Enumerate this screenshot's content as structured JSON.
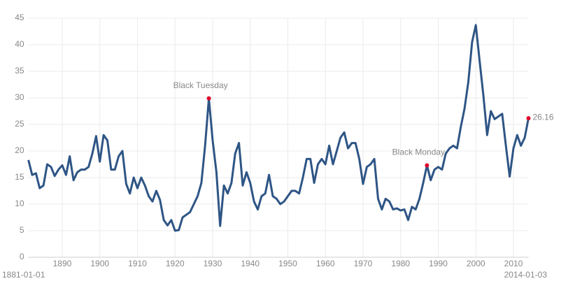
{
  "chart_data": {
    "type": "line",
    "start_label": "1881-01-01",
    "end_label": "2014-01-03",
    "x": [
      1881,
      1882,
      1883,
      1884,
      1885,
      1886,
      1887,
      1888,
      1889,
      1890,
      1891,
      1892,
      1893,
      1894,
      1895,
      1896,
      1897,
      1898,
      1899,
      1900,
      1901,
      1902,
      1903,
      1904,
      1905,
      1906,
      1907,
      1908,
      1909,
      1910,
      1911,
      1912,
      1913,
      1914,
      1915,
      1916,
      1917,
      1918,
      1919,
      1920,
      1921,
      1922,
      1923,
      1924,
      1925,
      1926,
      1927,
      1928,
      1929,
      1930,
      1931,
      1932,
      1933,
      1934,
      1935,
      1936,
      1937,
      1938,
      1939,
      1940,
      1941,
      1942,
      1943,
      1944,
      1945,
      1946,
      1947,
      1948,
      1949,
      1950,
      1951,
      1952,
      1953,
      1954,
      1955,
      1956,
      1957,
      1958,
      1959,
      1960,
      1961,
      1962,
      1963,
      1964,
      1965,
      1966,
      1967,
      1968,
      1969,
      1970,
      1971,
      1972,
      1973,
      1974,
      1975,
      1976,
      1977,
      1978,
      1979,
      1980,
      1981,
      1982,
      1983,
      1984,
      1985,
      1986,
      1987,
      1988,
      1989,
      1990,
      1991,
      1992,
      1993,
      1994,
      1995,
      1996,
      1997,
      1998,
      1999,
      2000,
      2001,
      2002,
      2003,
      2004,
      2005,
      2006,
      2007,
      2008,
      2009,
      2010,
      2011,
      2012,
      2013,
      2014
    ],
    "series": [
      {
        "color": "#2e5585",
        "values": [
          18.3,
          15.5,
          15.8,
          13.0,
          13.5,
          17.5,
          17.0,
          15.3,
          16.5,
          17.3,
          15.5,
          19.0,
          14.5,
          16.0,
          16.5,
          16.5,
          17.0,
          19.5,
          22.8,
          18.0,
          23.0,
          22.0,
          16.5,
          16.5,
          19.0,
          20.0,
          13.8,
          12.0,
          15.0,
          13.0,
          15.0,
          13.5,
          11.5,
          10.5,
          12.5,
          10.8,
          7.0,
          6.0,
          7.0,
          5.0,
          5.1,
          7.5,
          8.0,
          8.5,
          10.0,
          11.5,
          14.0,
          21.0,
          29.9,
          22.0,
          16.0,
          5.9,
          13.5,
          12.0,
          14.0,
          19.5,
          21.5,
          13.5,
          16.0,
          14.0,
          10.5,
          9.0,
          11.5,
          12.0,
          15.5,
          11.5,
          11.0,
          10.0,
          10.5,
          11.5,
          12.5,
          12.5,
          12.0,
          15.0,
          18.5,
          18.5,
          14.0,
          17.5,
          18.5,
          17.5,
          21.0,
          17.5,
          20.0,
          22.5,
          23.5,
          20.5,
          21.5,
          21.5,
          18.5,
          13.8,
          17.0,
          17.5,
          18.5,
          11.0,
          9.0,
          11.0,
          10.5,
          9.0,
          9.2,
          8.8,
          9.0,
          7.0,
          9.5,
          9.0,
          11.0,
          14.0,
          17.3,
          14.5,
          16.5,
          17.0,
          16.5,
          19.5,
          20.5,
          21.0,
          20.5,
          24.5,
          28.0,
          33.0,
          40.5,
          43.7,
          37.0,
          30.5,
          23.0,
          27.5,
          26.0,
          26.5,
          27.0,
          21.0,
          15.2,
          20.5,
          23.0,
          21.0,
          22.5,
          26.16
        ]
      }
    ],
    "annotations": [
      {
        "x": 1929,
        "y": 29.9,
        "label": "Black Tuesday"
      },
      {
        "x": 1987,
        "y": 17.3,
        "label": "Black Monday"
      },
      {
        "x": 2014,
        "y": 26.16,
        "label": "26.16"
      }
    ],
    "annotation_color": "#e0002a",
    "xlim": [
      1881,
      2014
    ],
    "xticks": [
      1890,
      1900,
      1910,
      1920,
      1930,
      1940,
      1950,
      1960,
      1970,
      1980,
      1990,
      2000,
      2010
    ],
    "ylim": [
      0,
      45
    ],
    "yticks": [
      0,
      5,
      10,
      15,
      20,
      25,
      30,
      35,
      40,
      45
    ],
    "grid": true
  }
}
